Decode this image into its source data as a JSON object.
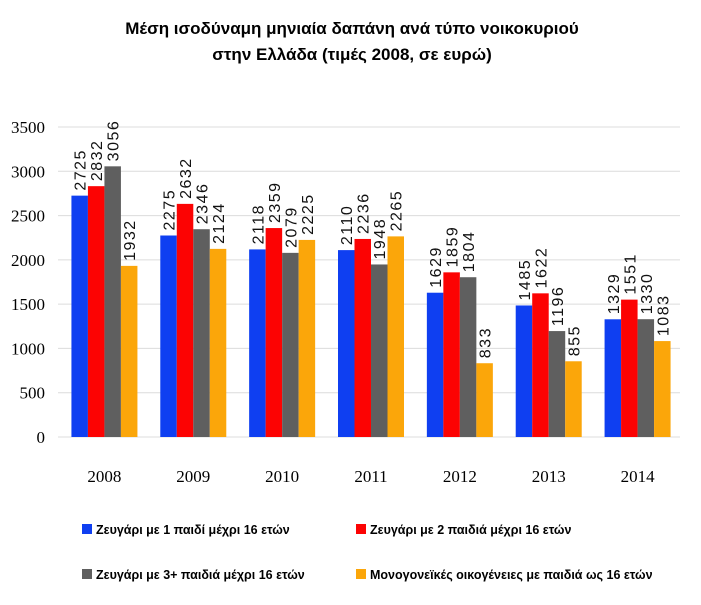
{
  "chart_data": {
    "type": "bar",
    "title": "Μέση ισοδύναμη μηνιαία δαπάνη ανά τύπο νοικοκυριού",
    "subtitle": "στην Ελλάδα (τιμές 2008, σε ευρώ)",
    "categories": [
      "2008",
      "2009",
      "2010",
      "2011",
      "2012",
      "2013",
      "2014"
    ],
    "series": [
      {
        "name": "Ζευγάρι με 1 παιδί μέχρι 16 ετών",
        "color": "#0f3ff1",
        "values": [
          2725,
          2275,
          2118,
          2110,
          1629,
          1485,
          1329
        ]
      },
      {
        "name": "Ζευγάρι με 2 παιδιά μέχρι 16 ετών",
        "color": "#fc0303",
        "values": [
          2832,
          2632,
          2359,
          2236,
          1859,
          1622,
          1551
        ]
      },
      {
        "name": "Ζευγάρι με 3+ παιδιά μέχρι 16 ετών",
        "color": "#5f5f5f",
        "values": [
          3056,
          2346,
          2079,
          1948,
          1804,
          1196,
          1330
        ]
      },
      {
        "name": "Μονογονεϊκές οικογένειες με παιδιά ως 16 ετών",
        "color": "#fba60a",
        "values": [
          1932,
          2124,
          2225,
          2265,
          833,
          855,
          1083
        ]
      }
    ],
    "yticks": [
      "0",
      "500",
      "1000",
      "1500",
      "2000",
      "2500",
      "3000",
      "3500"
    ],
    "ylim": [
      0,
      3500
    ],
    "grid": true,
    "legend": "bottom"
  }
}
